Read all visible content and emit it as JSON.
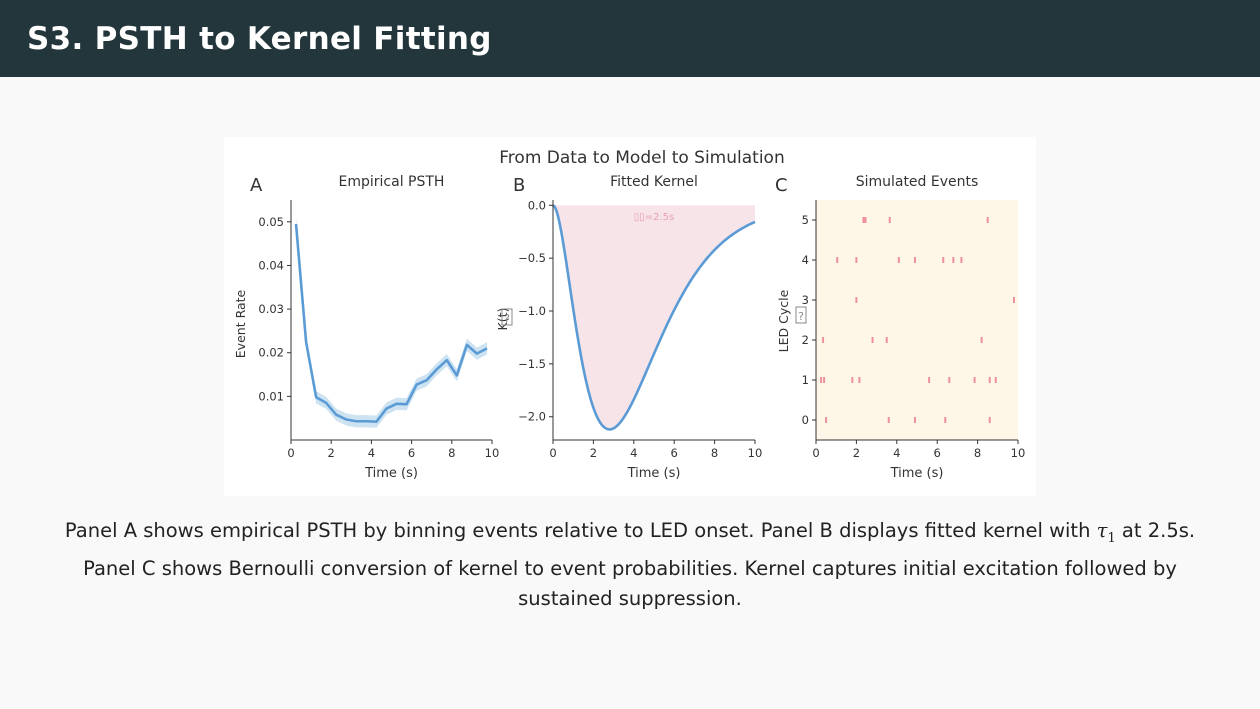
{
  "slide": {
    "title": "S3. PSTH to Kernel Fitting"
  },
  "figure": {
    "suptitle": "From Data to Model to Simulation"
  },
  "caption": {
    "part1": "Panel A shows empirical PSTH by binning events relative to LED onset. Panel B displays fitted kernel with ",
    "tau_symbol": "τ",
    "tau_subscript": "1",
    "part2": " at 2.5s. Panel C shows Bernoulli conversion of kernel to event probabilities. Kernel captures initial excitation followed by sustained suppression."
  },
  "colors": {
    "header_bg": "#23363c",
    "line_blue": "#5b9bd5",
    "band_blue": "#cde3f2",
    "kernel_fill": "#f7e4e8",
    "kernel_text": "#e8a1b3",
    "raster_bg": "#fef6e6",
    "raster_tick": "#f0909f"
  },
  "chart_data": [
    {
      "panel": "A",
      "type": "line",
      "title": "Empirical PSTH",
      "xlabel": "Time (s)",
      "ylabel": "Event Rate",
      "xlim": [
        0,
        10
      ],
      "ylim": [
        0,
        0.055
      ],
      "xticks": [
        0,
        2,
        4,
        6,
        8,
        10
      ],
      "yticks": [
        0.01,
        0.02,
        0.03,
        0.04,
        0.05
      ],
      "ytick_labels": [
        "0.01",
        "0.02",
        "0.03",
        "0.04",
        "0.05"
      ],
      "x": [
        0.25,
        0.75,
        1.25,
        1.75,
        2.25,
        2.75,
        3.25,
        3.75,
        4.25,
        4.75,
        5.25,
        5.75,
        6.25,
        6.75,
        7.25,
        7.75,
        8.25,
        8.75,
        9.25,
        9.75
      ],
      "values": [
        0.0495,
        0.0225,
        0.0098,
        0.0085,
        0.0058,
        0.0047,
        0.0043,
        0.0043,
        0.0042,
        0.0072,
        0.0083,
        0.0082,
        0.0127,
        0.0137,
        0.0162,
        0.0183,
        0.0148,
        0.0218,
        0.0198,
        0.021
      ],
      "band": 0.0014
    },
    {
      "panel": "B",
      "type": "area",
      "title": "Fitted Kernel",
      "xlabel": "Time (s)",
      "ylabel": "K(t)",
      "xlim": [
        0,
        10
      ],
      "ylim": [
        -2.22,
        0.05
      ],
      "xticks": [
        0,
        2,
        4,
        6,
        8,
        10
      ],
      "yticks": [
        0.0,
        -0.5,
        -1.0,
        -1.5,
        -2.0
      ],
      "ytick_labels": [
        "0.0",
        "−0.5",
        "−1.0",
        "−1.5",
        "−2.0"
      ],
      "curve": "K(t) = -2.12 * (t/2.8)^2 * exp(2*(1 - t/2.8))",
      "peak_t": 2.8,
      "peak_value": -2.12,
      "annotation": "τ₁=2.5s",
      "annotation_shown": "▯▯=2.5s"
    },
    {
      "panel": "C",
      "type": "scatter",
      "title": "Simulated Events",
      "xlabel": "Time (s)",
      "ylabel": "LED Cycle",
      "xlim": [
        0,
        10
      ],
      "ylim": [
        -0.5,
        5.5
      ],
      "xticks": [
        0,
        2,
        4,
        6,
        8,
        10
      ],
      "yticks": [
        0,
        1,
        2,
        3,
        4,
        5
      ],
      "events": [
        {
          "cycle": 0,
          "times": [
            0.5,
            3.6,
            4.9,
            6.4,
            8.6
          ]
        },
        {
          "cycle": 1,
          "times": [
            0.25,
            0.4,
            1.8,
            2.15,
            5.6,
            6.6,
            7.85,
            8.6,
            8.9
          ]
        },
        {
          "cycle": 2,
          "times": [
            0.35,
            2.8,
            3.5,
            8.2
          ]
        },
        {
          "cycle": 3,
          "times": [
            2.0,
            9.8
          ]
        },
        {
          "cycle": 4,
          "times": [
            1.05,
            2.0,
            4.1,
            4.9,
            6.3,
            6.8,
            7.2
          ]
        },
        {
          "cycle": 5,
          "times": [
            2.35,
            2.45,
            3.65,
            8.5
          ]
        }
      ]
    }
  ],
  "panel_letters": [
    "A",
    "B",
    "C"
  ],
  "missing_glyph": "?"
}
